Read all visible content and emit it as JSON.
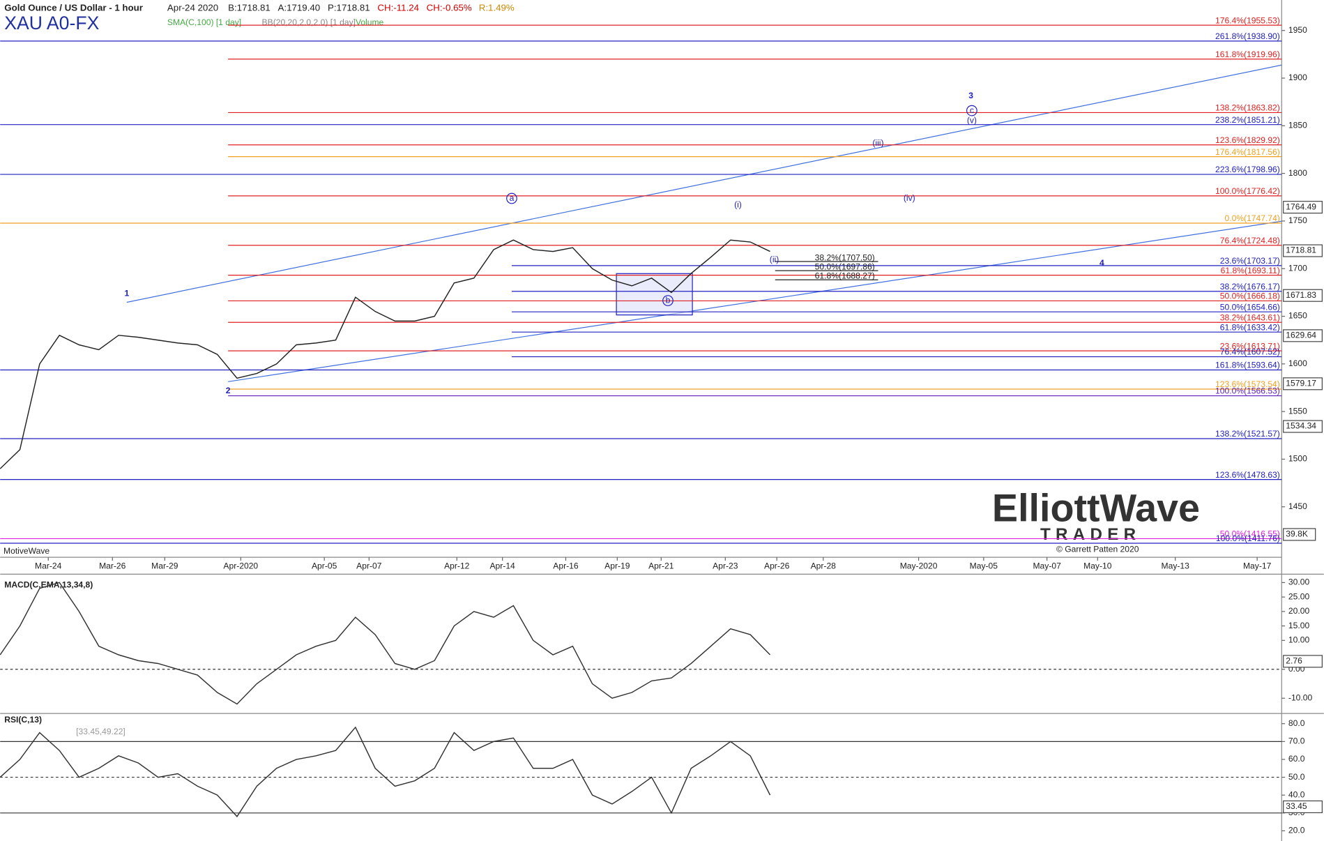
{
  "header": {
    "title": "Gold Ounce / US Dollar - 1 hour",
    "date": "Apr-24 2020",
    "bid": "B:1718.81",
    "ask": "A:1719.40",
    "price": "P:1718.81",
    "change": "CH:-11.24",
    "change_pct": "CH:-0.65%",
    "range": "R:1.49%",
    "symbol": "XAU A0-FX",
    "studies": [
      "SMA(C,100) [1 day]",
      "BB(20,20,2.0,2.0) [1 day]",
      "Volume"
    ],
    "watermark": "MotiveWave",
    "volume_label": "39.8K"
  },
  "logo": {
    "name": "ElliottWave",
    "sub": "TRADER",
    "copyright": "© Garrett Patten 2020"
  },
  "waves": [
    "1",
    "2",
    "3",
    "4",
    "a",
    "b",
    "c",
    "(i)",
    "(ii)",
    "(iii)",
    "(iv)",
    "(v)"
  ],
  "retracements": [
    {
      "value": 1707.5,
      "label": "38.2%(1707.50)"
    },
    {
      "value": 1697.86,
      "label": "50.0%(1697.86)"
    },
    {
      "value": 1688.27,
      "label": "61.8%(1688.27)"
    }
  ],
  "chart_data": [
    {
      "type": "line",
      "title": "Gold Ounce / US Dollar - 1 hour",
      "color": "#222",
      "date_labels": [
        "Mar-24",
        "Mar-26",
        "Mar-29",
        "Apr-2020",
        "Apr-05",
        "Apr-07",
        "Apr-12",
        "Apr-14",
        "Apr-16",
        "Apr-19",
        "Apr-21",
        "Apr-23",
        "Apr-26",
        "Apr-28",
        "May-2020",
        "May-05",
        "May-07",
        "May-10",
        "May-13",
        "May-17"
      ],
      "series": [
        {
          "name": "XAU A0-FX",
          "color": "#222",
          "values": [
            1490,
            1510,
            1600,
            1630,
            1620,
            1615,
            1630,
            1628,
            1625,
            1622,
            1620,
            1610,
            1585,
            1590,
            1600,
            1620,
            1622,
            1625,
            1670,
            1655,
            1645,
            1645,
            1650,
            1685,
            1690,
            1720,
            1730,
            1720,
            1718,
            1722,
            1700,
            1688,
            1682,
            1690,
            1675,
            1695,
            1712,
            1730,
            1728,
            1718
          ]
        }
      ],
      "ylim": [
        1397,
        1982
      ],
      "yticks": [
        1450,
        1500,
        1550,
        1600,
        1650,
        1700,
        1750,
        1800,
        1850,
        1900,
        1950
      ],
      "badges": [
        1764.49,
        1718.81,
        1671.83,
        1629.64,
        1579.17,
        1534.34
      ],
      "levels": [
        {
          "value": 1955.53,
          "label": "176.4%(1955.53)",
          "color": "#e02020"
        },
        {
          "value": 1938.9,
          "label": "261.8%(1938.90)",
          "color": "#2020c0"
        },
        {
          "value": 1919.96,
          "label": "161.8%(1919.96)",
          "color": "#e02020"
        },
        {
          "value": 1863.82,
          "label": "138.2%(1863.82)",
          "color": "#e02020"
        },
        {
          "value": 1851.21,
          "label": "238.2%(1851.21)",
          "color": "#2020c0"
        },
        {
          "value": 1829.92,
          "label": "123.6%(1829.92)",
          "color": "#e02020"
        },
        {
          "value": 1817.56,
          "label": "176.4%(1817.56)",
          "color": "#f0a020"
        },
        {
          "value": 1798.96,
          "label": "223.6%(1798.96)",
          "color": "#2020c0"
        },
        {
          "value": 1776.42,
          "label": "100.0%(1776.42)",
          "color": "#e02020"
        },
        {
          "value": 1747.74,
          "label": "0.0%(1747.74)",
          "color": "#f0a020"
        },
        {
          "value": 1724.48,
          "label": "76.4%(1724.48)",
          "color": "#e02020"
        },
        {
          "value": 1703.17,
          "label": "23.6%(1703.17)",
          "color": "#2020c0"
        },
        {
          "value": 1693.11,
          "label": "61.8%(1693.11)",
          "color": "#e02020"
        },
        {
          "value": 1676.17,
          "label": "38.2%(1676.17)",
          "color": "#2020c0"
        },
        {
          "value": 1666.18,
          "label": "50.0%(1666.18)",
          "color": "#e02020"
        },
        {
          "value": 1654.66,
          "label": "50.0%(1654.66)",
          "color": "#2020c0"
        },
        {
          "value": 1643.61,
          "label": "38.2%(1643.61)",
          "color": "#e02020"
        },
        {
          "value": 1633.42,
          "label": "61.8%(1633.42)",
          "color": "#2020c0"
        },
        {
          "value": 1613.71,
          "label": "23.6%(1613.71)",
          "color": "#e02020"
        },
        {
          "value": 1607.52,
          "label": "76.4%(1607.52)",
          "color": "#2020c0"
        },
        {
          "value": 1593.64,
          "label": "161.8%(1593.64)",
          "color": "#2020c0"
        },
        {
          "value": 1573.54,
          "label": "123.6%(1573.54)",
          "color": "#f0a020"
        },
        {
          "value": 1566.53,
          "label": "100.0%(1566.53)",
          "color": "#6020c0"
        },
        {
          "value": 1521.57,
          "label": "138.2%(1521.57)",
          "color": "#2020c0"
        },
        {
          "value": 1478.63,
          "label": "123.6%(1478.63)",
          "color": "#2020c0"
        },
        {
          "value": 1416.55,
          "label": "50.0%(1416.55)",
          "color": "#e020e0"
        },
        {
          "value": 1411.76,
          "label": "100.0%(1411.76)",
          "color": "#2020c0"
        }
      ]
    },
    {
      "type": "line",
      "title": "MACD(C,EMA,13,34,8)",
      "series": [
        {
          "name": "MACD",
          "color": "#333",
          "values": [
            5,
            15,
            28,
            30,
            20,
            8,
            5,
            3,
            2,
            0,
            -2,
            -8,
            -12,
            -5,
            0,
            5,
            8,
            10,
            18,
            12,
            2,
            0,
            3,
            15,
            20,
            18,
            22,
            10,
            5,
            8,
            -5,
            -10,
            -8,
            -4,
            -3,
            2,
            8,
            14,
            12,
            5
          ]
        }
      ],
      "ylim": [
        -14.7,
        32.9
      ],
      "yticks": [
        {
          "value": 30,
          "label": "30.00"
        },
        {
          "value": 25,
          "label": "25.00"
        },
        {
          "value": 20,
          "label": "20.00"
        },
        {
          "value": 15,
          "label": "15.00"
        },
        {
          "value": 10,
          "label": "10.00"
        },
        {
          "value": 0,
          "label": "0.00"
        },
        {
          "value": -10,
          "label": "-10.00"
        }
      ],
      "badges": [
        2.76
      ]
    },
    {
      "type": "line",
      "title": "RSI(C,13)",
      "subtitle": "[33.45,49.22]",
      "series": [
        {
          "name": "RSI",
          "color": "#333",
          "values": [
            50,
            60,
            75,
            65,
            50,
            55,
            62,
            58,
            50,
            52,
            45,
            40,
            28,
            45,
            55,
            60,
            62,
            65,
            78,
            55,
            45,
            48,
            55,
            75,
            65,
            70,
            72,
            55,
            55,
            60,
            40,
            35,
            42,
            50,
            30,
            55,
            62,
            70,
            62,
            40
          ]
        }
      ],
      "ylim": [
        14.3,
        85.7
      ],
      "yticks": [
        {
          "value": 80,
          "label": "80.0"
        },
        {
          "value": 70,
          "label": "70.0"
        },
        {
          "value": 60,
          "label": "60.0"
        },
        {
          "value": 50,
          "label": "50.0"
        },
        {
          "value": 40,
          "label": "40.0"
        },
        {
          "value": 30,
          "label": "30.0"
        },
        {
          "value": 20,
          "label": "20.0"
        }
      ],
      "badges": [
        33.45
      ]
    }
  ]
}
